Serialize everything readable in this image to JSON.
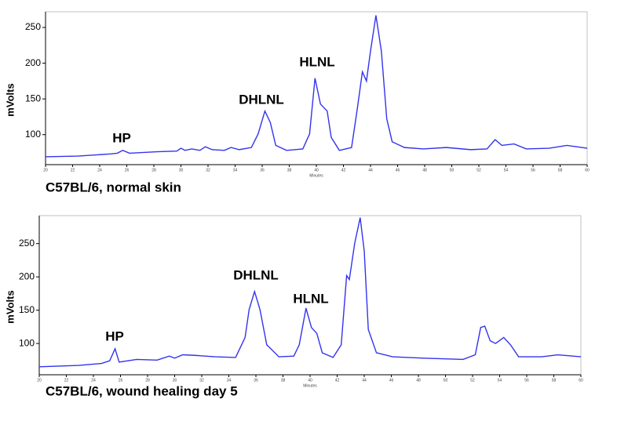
{
  "chart_data": [
    {
      "type": "line",
      "ylabel": "mVolts",
      "xlabel": "Minutes",
      "caption": "C57BL/6, normal skin",
      "annotations": [
        "HP",
        "DHLNL",
        "HLNL"
      ],
      "xlim": [
        20,
        60
      ],
      "xticks": [
        20,
        22,
        24,
        26,
        28,
        30,
        32,
        34,
        36,
        38,
        40,
        42,
        44,
        46,
        48,
        50,
        52,
        54,
        56,
        58,
        60
      ],
      "ylim": [
        58,
        272
      ],
      "yticks": [
        100,
        150,
        200,
        250
      ],
      "series": [
        {
          "color": "#3333ee",
          "x": [
            20,
            22.4,
            24.8,
            25.3,
            25.7,
            26.2,
            28.2,
            29.7,
            30,
            30.3,
            30.8,
            31.4,
            31.8,
            32.3,
            33.2,
            33.7,
            34.3,
            35.2,
            35.7,
            36.2,
            36.6,
            37,
            37.8,
            39,
            39.5,
            39.9,
            40.3,
            40.8,
            41.1,
            41.7,
            42.6,
            43,
            43.4,
            43.7,
            44,
            44.4,
            44.8,
            45.2,
            45.6,
            46.5,
            47.9,
            49.6,
            51.4,
            52.6,
            53.2,
            53.7,
            54.6,
            55.5,
            57.2,
            58.5,
            60
          ],
          "values": [
            69,
            70,
            73,
            74,
            78,
            74,
            76,
            77,
            81,
            78,
            80,
            78,
            83,
            79,
            78,
            82,
            79,
            82,
            101,
            133,
            117,
            85,
            78,
            80,
            101,
            179,
            143,
            133,
            96,
            78,
            82,
            133,
            188,
            175,
            217,
            267,
            217,
            122,
            90,
            82,
            80,
            82,
            79,
            80,
            93,
            85,
            87,
            80,
            81,
            85,
            81
          ]
        }
      ]
    },
    {
      "type": "line",
      "ylabel": "mVolts",
      "xlabel": "Minutes",
      "caption": "C57BL/6, wound healing day 5",
      "annotations": [
        "HP",
        "DHLNL",
        "HLNL"
      ],
      "xlim": [
        20,
        60
      ],
      "xticks": [
        20,
        22,
        24,
        26,
        28,
        30,
        32,
        34,
        36,
        38,
        40,
        42,
        44,
        46,
        48,
        50,
        52,
        54,
        56,
        58,
        60
      ],
      "ylim": [
        53,
        292
      ],
      "yticks": [
        100,
        150,
        200,
        250
      ],
      "series": [
        {
          "color": "#3333ee",
          "x": [
            20,
            22.9,
            24.6,
            25.2,
            25.6,
            25.9,
            27.2,
            28.7,
            29.6,
            30,
            30.6,
            31.6,
            33,
            34.5,
            35.2,
            35.5,
            35.9,
            36.3,
            36.8,
            37.7,
            38.8,
            39.2,
            39.7,
            40.1,
            40.5,
            40.9,
            41.7,
            42.3,
            42.7,
            42.9,
            43.3,
            43.7,
            44,
            44.3,
            44.9,
            46.1,
            48.4,
            51.3,
            52.2,
            52.6,
            52.9,
            53.3,
            53.7,
            54.3,
            54.8,
            55.4,
            57.1,
            58.3,
            60
          ],
          "values": [
            65,
            67,
            70,
            74,
            92,
            72,
            76,
            75,
            81,
            78,
            83,
            82,
            80,
            79,
            109,
            151,
            178,
            151,
            98,
            80,
            81,
            98,
            153,
            124,
            115,
            86,
            79,
            98,
            202,
            196,
            251,
            289,
            239,
            121,
            86,
            80,
            78,
            76,
            83,
            124,
            126,
            104,
            100,
            109,
            98,
            80,
            80,
            83,
            80
          ]
        }
      ]
    }
  ]
}
